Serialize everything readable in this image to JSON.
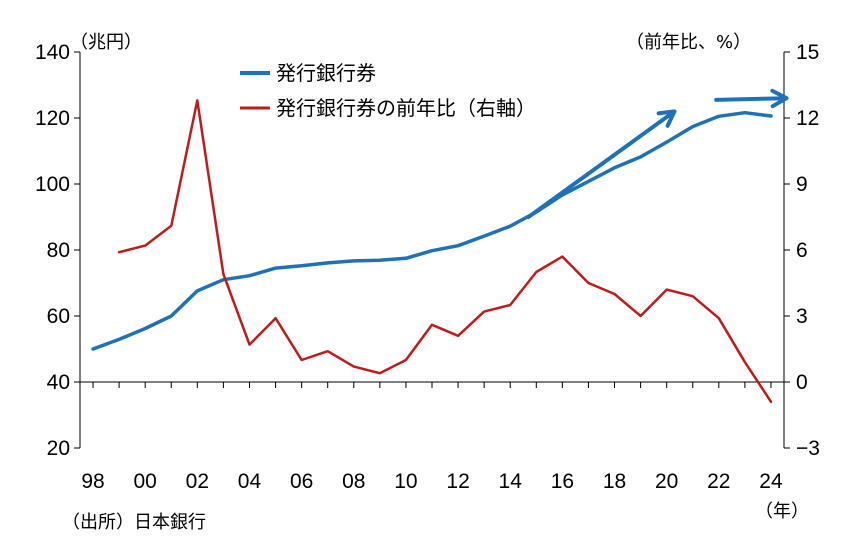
{
  "chart_data": {
    "type": "line",
    "left_axis_unit": "（兆円）",
    "right_axis_unit": "（前年比、%）",
    "x_unit": "（年）",
    "source": "（出所）日本銀行",
    "x_tick_labels": [
      "98",
      "00",
      "02",
      "04",
      "06",
      "08",
      "10",
      "12",
      "14",
      "16",
      "18",
      "20",
      "22",
      "24"
    ],
    "x_ticks": [
      1998,
      2000,
      2002,
      2004,
      2006,
      2008,
      2010,
      2012,
      2014,
      2016,
      2018,
      2020,
      2022,
      2024
    ],
    "xlim": [
      1997.5,
      2024.5
    ],
    "left_ylim": [
      20,
      140
    ],
    "left_ticks": [
      20,
      40,
      60,
      80,
      100,
      120,
      140
    ],
    "left_tick_labels": [
      "20",
      "40",
      "60",
      "80",
      "100",
      "120",
      "140"
    ],
    "right_ylim": [
      -3,
      15
    ],
    "right_ticks": [
      -3,
      0,
      3,
      6,
      9,
      12,
      15
    ],
    "right_tick_labels": [
      "−3",
      "0",
      "3",
      "6",
      "9",
      "12",
      "15"
    ],
    "legend_placement": "top-center",
    "grid": false,
    "series": [
      {
        "name": "発行銀行券",
        "axis": "left",
        "color": "#1f72b8",
        "x": [
          1998,
          1999,
          2000,
          2001,
          2002,
          2003,
          2004,
          2005,
          2006,
          2007,
          2008,
          2009,
          2010,
          2011,
          2012,
          2013,
          2014,
          2015,
          2016,
          2017,
          2018,
          2019,
          2020,
          2021,
          2022,
          2023,
          2024
        ],
        "values": [
          50,
          52.9,
          56.2,
          60,
          67.6,
          71,
          72.2,
          74.5,
          75.2,
          76.1,
          76.7,
          76.9,
          77.5,
          79.8,
          81.3,
          84.2,
          87.2,
          91.5,
          96.7,
          100.8,
          104.9,
          108.2,
          112.7,
          117.4,
          120.5,
          121.6,
          120.6
        ]
      },
      {
        "name": "発行銀行券の前年比（右軸）",
        "axis": "right",
        "color": "#c01b1b",
        "x": [
          1999,
          2000,
          2001,
          2002,
          2003,
          2004,
          2005,
          2006,
          2007,
          2008,
          2009,
          2010,
          2011,
          2012,
          2013,
          2014,
          2015,
          2016,
          2017,
          2018,
          2019,
          2020,
          2021,
          2022,
          2023,
          2024
        ],
        "values": [
          5.9,
          6.2,
          7.1,
          12.8,
          4.9,
          1.7,
          2.9,
          1.0,
          1.4,
          0.7,
          0.4,
          1.0,
          2.6,
          2.1,
          3.2,
          3.5,
          5.0,
          5.7,
          4.5,
          4.0,
          3.0,
          4.2,
          3.9,
          2.9,
          0.9,
          -0.9
        ]
      }
    ],
    "annotations": [
      {
        "type": "arrow",
        "color": "#1f72b8",
        "from": [
          2014.7,
          90
        ],
        "to": [
          2020.3,
          122
        ]
      },
      {
        "type": "arrow",
        "color": "#1f72b8",
        "from": [
          2021.9,
          125.5
        ],
        "to": [
          2024.6,
          126
        ]
      }
    ]
  }
}
